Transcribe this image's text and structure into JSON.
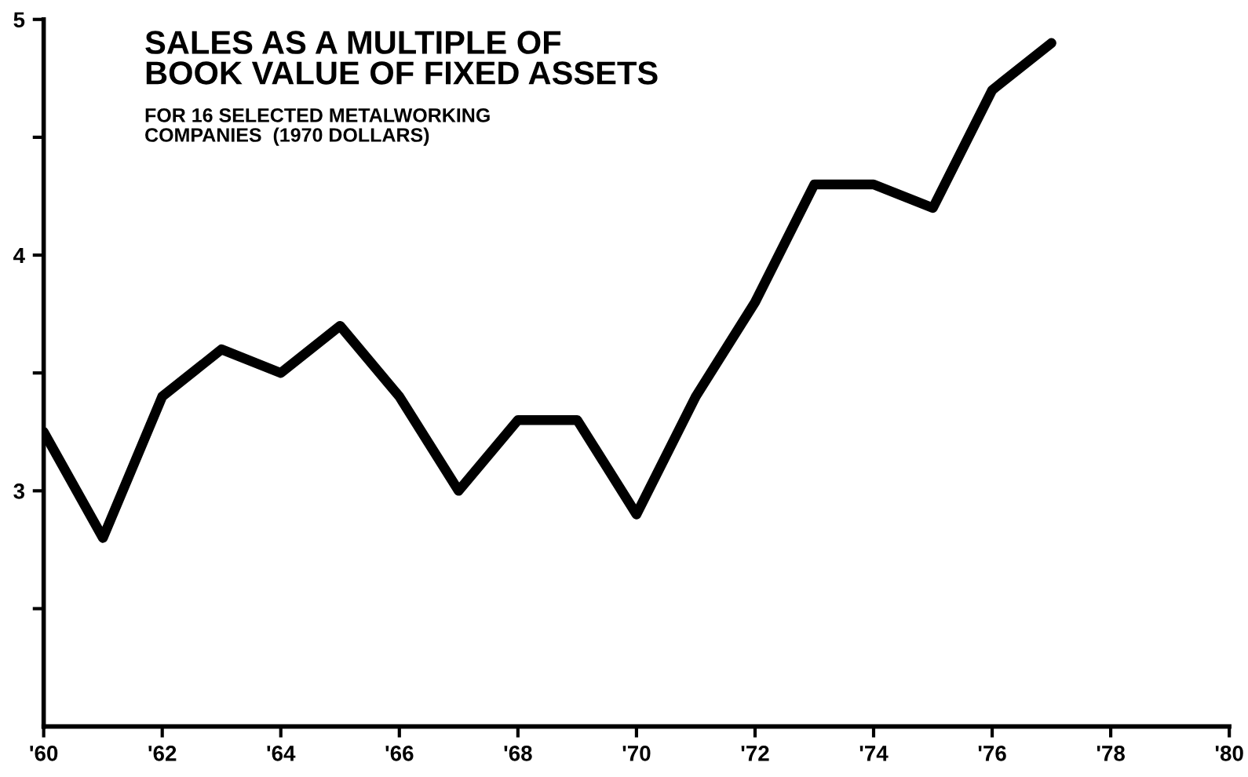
{
  "chart_data": {
    "type": "line",
    "title": "SALES AS A MULTIPLE OF\nBOOK VALUE OF FIXED ASSETS",
    "subtitle": "FOR 16 SELECTED METALWORKING\nCOMPANIES  (1970 DOLLARS)",
    "x": [
      1960,
      1961,
      1962,
      1963,
      1964,
      1965,
      1966,
      1967,
      1968,
      1969,
      1970,
      1971,
      1972,
      1973,
      1974,
      1975,
      1976,
      1977
    ],
    "series": [
      {
        "color": "#000000",
        "values": [
          3.25,
          2.8,
          3.4,
          3.6,
          3.5,
          3.7,
          3.4,
          3.0,
          3.3,
          3.3,
          2.9,
          3.4,
          3.8,
          4.3,
          4.3,
          4.2,
          4.7,
          4.9
        ]
      }
    ],
    "xlim": [
      1960,
      1980
    ],
    "xticks": [
      {
        "value": 1960,
        "label": "'60"
      },
      {
        "value": 1962,
        "label": "'62"
      },
      {
        "value": 1964,
        "label": "'64"
      },
      {
        "value": 1966,
        "label": "'66"
      },
      {
        "value": 1968,
        "label": "'68"
      },
      {
        "value": 1970,
        "label": "'70"
      },
      {
        "value": 1972,
        "label": "'72"
      },
      {
        "value": 1974,
        "label": "'74"
      },
      {
        "value": 1976,
        "label": "'76"
      },
      {
        "value": 1978,
        "label": "'78"
      },
      {
        "value": 1980,
        "label": "'80"
      }
    ],
    "ylim": [
      2,
      5
    ],
    "yticks": [
      {
        "value": 2.5,
        "label": null
      },
      3,
      {
        "value": 3.5,
        "label": null
      },
      4,
      {
        "value": 4.5,
        "label": null
      },
      5
    ],
    "grid": false,
    "marker": "none",
    "line_style": "solid"
  }
}
